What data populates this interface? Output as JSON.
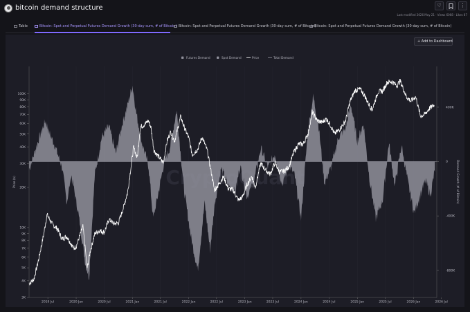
{
  "header": {
    "title": "bitcoin demand structure",
    "meta": "Last modified 2026 May 21 · Views 6068 · Likes 87"
  },
  "tabs": [
    {
      "label": "Table",
      "active": false
    },
    {
      "label": "Bitcoin: Spot and Perpetual Futures Demand Growth (30-day sum, # of Bitcoin)",
      "active": true
    },
    {
      "label": "Bitcoin: Spot and Perpetual Futures Demand Growth (30-day sum, # of Bitcoin)",
      "active": false
    },
    {
      "label": "Bitcoin: Spot and Perpetual Futures Demand Growth (30-day sum, # of Bitcoin)",
      "active": false
    }
  ],
  "panel": {
    "add_button": "Add to Dashboard",
    "watermark": "CryptoQuant"
  },
  "icons": {
    "heart": "heart-icon",
    "bookmark": "bookmark-icon",
    "more": "more-vertical-icon"
  },
  "chart_data": {
    "type": "line",
    "legend": [
      {
        "name": "Futures Demand",
        "color": "#8f8f9a",
        "style": "area"
      },
      {
        "name": "Spot Demand",
        "color": "#8f8f9a",
        "style": "area"
      },
      {
        "name": "Price",
        "color": "#ffffff",
        "style": "line"
      },
      {
        "name": "Total Demand",
        "color": "#8f8f9a",
        "style": "line"
      }
    ],
    "legend_position": "top-center",
    "y_left": {
      "label": "Price ($)",
      "scale": "log",
      "range": [
        3000,
        160000
      ],
      "ticks": [
        "100K",
        "90K",
        "80K",
        "70K",
        "60K",
        "50K",
        "40K",
        "30K",
        "20K",
        "10K",
        "9K",
        "8K",
        "7K",
        "6K",
        "5K",
        "4K",
        "3K"
      ],
      "tick_values": [
        100000,
        90000,
        80000,
        70000,
        60000,
        50000,
        40000,
        30000,
        20000,
        10000,
        9000,
        8000,
        7000,
        6000,
        5000,
        4000,
        3000
      ]
    },
    "y_right": {
      "label": "Demand Growth (# of Bitcoin)",
      "range": [
        -1000000,
        700000
      ],
      "ticks": [
        "400K",
        "0",
        "-400K",
        "-800K"
      ],
      "tick_values": [
        400000,
        0,
        -400000,
        -800000
      ]
    },
    "x": {
      "start": "2019-03-01",
      "end": "2026-06-01",
      "ticks": [
        "2019 Jul",
        "2020 Jan",
        "2020 Jul",
        "2021 Jan",
        "2021 Jul",
        "2022 Jan",
        "2022 Jul",
        "2023 Jan",
        "2023 Jul",
        "2024 Jan",
        "2024 Jul",
        "2025 Jan",
        "2025 Jul",
        "2026 Jan",
        "2026 Jul"
      ],
      "tick_dates": [
        "2019-07-01",
        "2020-01-01",
        "2020-07-01",
        "2021-01-01",
        "2021-07-01",
        "2022-01-01",
        "2022-07-01",
        "2023-01-01",
        "2023-07-01",
        "2024-01-01",
        "2024-07-01",
        "2025-01-01",
        "2025-07-01",
        "2026-01-01",
        "2026-07-01"
      ]
    },
    "price": {
      "dates": [
        "2019-03-01",
        "2019-04-01",
        "2019-05-01",
        "2019-06-01",
        "2019-06-26",
        "2019-08-01",
        "2019-09-01",
        "2019-10-01",
        "2019-11-01",
        "2019-12-15",
        "2020-01-01",
        "2020-02-14",
        "2020-03-13",
        "2020-04-01",
        "2020-05-01",
        "2020-06-01",
        "2020-07-01",
        "2020-08-01",
        "2020-09-01",
        "2020-10-01",
        "2020-11-01",
        "2020-12-01",
        "2021-01-08",
        "2021-02-01",
        "2021-02-21",
        "2021-03-15",
        "2021-04-14",
        "2021-05-01",
        "2021-05-20",
        "2021-06-01",
        "2021-07-20",
        "2021-08-15",
        "2021-09-07",
        "2021-10-01",
        "2021-11-10",
        "2021-12-01",
        "2022-01-01",
        "2022-01-24",
        "2022-03-01",
        "2022-03-29",
        "2022-05-01",
        "2022-06-18",
        "2022-07-15",
        "2022-08-15",
        "2022-09-15",
        "2022-10-15",
        "2022-11-21",
        "2022-12-15",
        "2023-01-15",
        "2023-02-15",
        "2023-03-10",
        "2023-04-14",
        "2023-05-15",
        "2023-06-15",
        "2023-07-15",
        "2023-08-15",
        "2023-09-15",
        "2023-10-15",
        "2023-11-15",
        "2023-12-15",
        "2024-01-15",
        "2024-02-15",
        "2024-03-14",
        "2024-04-15",
        "2024-05-15",
        "2024-06-15",
        "2024-07-15",
        "2024-08-05",
        "2024-09-06",
        "2024-10-15",
        "2024-11-15",
        "2024-12-17",
        "2025-01-20",
        "2025-02-15",
        "2025-03-15",
        "2025-04-07",
        "2025-05-15",
        "2025-06-15",
        "2025-07-14",
        "2025-08-14",
        "2025-09-15",
        "2025-10-06",
        "2025-11-15",
        "2025-12-15",
        "2026-01-15",
        "2026-02-15",
        "2026-03-15",
        "2026-04-15",
        "2026-05-15"
      ],
      "values": [
        3800,
        4100,
        5700,
        8500,
        12500,
        10500,
        9800,
        8200,
        8600,
        7000,
        7200,
        10200,
        5000,
        6600,
        9000,
        9500,
        9200,
        11500,
        10700,
        10800,
        13800,
        18500,
        40000,
        33000,
        57000,
        58000,
        63000,
        56000,
        38000,
        36000,
        30500,
        45000,
        52000,
        44000,
        67500,
        57000,
        47000,
        35000,
        38500,
        47500,
        38000,
        19000,
        21000,
        24000,
        19500,
        19200,
        16000,
        16800,
        20800,
        24200,
        20000,
        30200,
        27000,
        25000,
        30500,
        26000,
        26500,
        28500,
        36500,
        42000,
        42000,
        50000,
        73000,
        63000,
        61000,
        65000,
        57000,
        50000,
        54000,
        62000,
        88000,
        106000,
        108000,
        98000,
        84000,
        76000,
        103000,
        105000,
        122000,
        123000,
        115000,
        125000,
        95000,
        88000,
        95000,
        68000,
        70000,
        78000,
        82000
      ]
    },
    "demand": {
      "dates": [
        "2019-03-01",
        "2019-05-01",
        "2019-06-15",
        "2019-07-15",
        "2019-08-15",
        "2019-10-01",
        "2019-11-01",
        "2019-12-01",
        "2020-01-15",
        "2020-03-01",
        "2020-03-25",
        "2020-05-01",
        "2020-06-15",
        "2020-08-01",
        "2020-09-15",
        "2020-10-20",
        "2020-12-01",
        "2021-01-01",
        "2021-01-25",
        "2021-03-01",
        "2021-04-15",
        "2021-05-15",
        "2021-06-15",
        "2021-07-25",
        "2021-09-01",
        "2021-10-15",
        "2021-12-01",
        "2022-01-15",
        "2022-03-01",
        "2022-04-15",
        "2022-05-20",
        "2022-06-20",
        "2022-08-01",
        "2022-09-15",
        "2022-11-01",
        "2022-12-01",
        "2023-01-15",
        "2023-03-01",
        "2023-04-15",
        "2023-06-01",
        "2023-07-15",
        "2023-09-01",
        "2023-10-15",
        "2023-11-20",
        "2024-01-01",
        "2024-02-15",
        "2024-03-20",
        "2024-04-25",
        "2024-06-01",
        "2024-07-15",
        "2024-09-01",
        "2024-10-15",
        "2024-11-20",
        "2025-01-01",
        "2025-02-10",
        "2025-03-20",
        "2025-05-01",
        "2025-06-15",
        "2025-07-25",
        "2025-09-01",
        "2025-10-15",
        "2025-11-25",
        "2026-01-05",
        "2026-02-15",
        "2026-03-20",
        "2026-04-20",
        "2026-05-20"
      ],
      "values": [
        -60000,
        160000,
        300000,
        200000,
        120000,
        -40000,
        -300000,
        -100000,
        -380000,
        -750000,
        -850000,
        -100000,
        180000,
        260000,
        60000,
        250000,
        420000,
        560000,
        360000,
        150000,
        -30000,
        -420000,
        -250000,
        -10000,
        100000,
        380000,
        -200000,
        -550000,
        -800000,
        -300000,
        -650000,
        -300000,
        -50000,
        -180000,
        -220000,
        -30000,
        -260000,
        -150000,
        100000,
        -50000,
        60000,
        -170000,
        -30000,
        -100000,
        -420000,
        230000,
        480000,
        260000,
        -160000,
        -40000,
        180000,
        240000,
        420000,
        150000,
        280000,
        -120000,
        -420000,
        -280000,
        140000,
        -180000,
        120000,
        -150000,
        -380000,
        -240000,
        -140000,
        -250000,
        -60000
      ]
    }
  }
}
